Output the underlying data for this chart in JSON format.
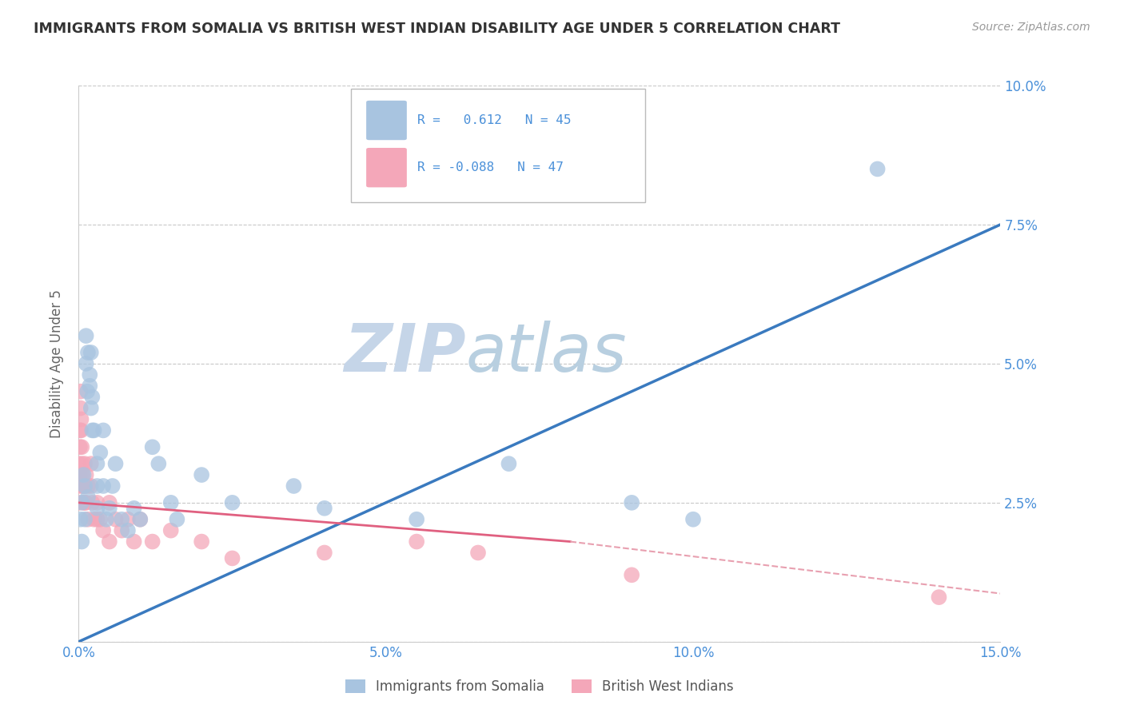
{
  "title": "IMMIGRANTS FROM SOMALIA VS BRITISH WEST INDIAN DISABILITY AGE UNDER 5 CORRELATION CHART",
  "source": "Source: ZipAtlas.com",
  "ylabel": "Disability Age Under 5",
  "xlim": [
    0,
    0.15
  ],
  "ylim": [
    0,
    0.1
  ],
  "xticks": [
    0.0,
    0.05,
    0.1,
    0.15
  ],
  "xticklabels": [
    "0.0%",
    "5.0%",
    "10.0%",
    "15.0%"
  ],
  "yticks": [
    0.0,
    0.025,
    0.05,
    0.075,
    0.1
  ],
  "yticklabels": [
    "",
    "2.5%",
    "5.0%",
    "7.5%",
    "10.0%"
  ],
  "somalia_color": "#a8c4e0",
  "bwi_color": "#f4a7b9",
  "somalia_line_color": "#3a7abf",
  "bwi_line_color": "#e06080",
  "bwi_line_color_dash": "#e8a0b0",
  "watermark_color": "#ccd9ea",
  "background_color": "#ffffff",
  "grid_color": "#c8c8c8",
  "title_color": "#333333",
  "axis_label_color": "#666666",
  "tick_color": "#4a90d9",
  "legend_text_color": "#4a90d9",
  "somalia_scatter": [
    [
      0.0003,
      0.022
    ],
    [
      0.0005,
      0.025
    ],
    [
      0.0005,
      0.018
    ],
    [
      0.0008,
      0.03
    ],
    [
      0.001,
      0.022
    ],
    [
      0.001,
      0.028
    ],
    [
      0.0012,
      0.055
    ],
    [
      0.0012,
      0.05
    ],
    [
      0.0014,
      0.045
    ],
    [
      0.0015,
      0.052
    ],
    [
      0.0015,
      0.026
    ],
    [
      0.0018,
      0.046
    ],
    [
      0.0018,
      0.048
    ],
    [
      0.002,
      0.052
    ],
    [
      0.002,
      0.042
    ],
    [
      0.0022,
      0.038
    ],
    [
      0.0022,
      0.044
    ],
    [
      0.0025,
      0.038
    ],
    [
      0.003,
      0.024
    ],
    [
      0.003,
      0.032
    ],
    [
      0.003,
      0.028
    ],
    [
      0.0035,
      0.034
    ],
    [
      0.004,
      0.038
    ],
    [
      0.004,
      0.028
    ],
    [
      0.0045,
      0.022
    ],
    [
      0.005,
      0.024
    ],
    [
      0.0055,
      0.028
    ],
    [
      0.006,
      0.032
    ],
    [
      0.007,
      0.022
    ],
    [
      0.008,
      0.02
    ],
    [
      0.009,
      0.024
    ],
    [
      0.01,
      0.022
    ],
    [
      0.012,
      0.035
    ],
    [
      0.013,
      0.032
    ],
    [
      0.015,
      0.025
    ],
    [
      0.016,
      0.022
    ],
    [
      0.02,
      0.03
    ],
    [
      0.025,
      0.025
    ],
    [
      0.035,
      0.028
    ],
    [
      0.04,
      0.024
    ],
    [
      0.055,
      0.022
    ],
    [
      0.07,
      0.032
    ],
    [
      0.09,
      0.025
    ],
    [
      0.1,
      0.022
    ],
    [
      0.13,
      0.085
    ]
  ],
  "bwi_scatter": [
    [
      0.0,
      0.025
    ],
    [
      0.0,
      0.032
    ],
    [
      0.0,
      0.028
    ],
    [
      0.0002,
      0.038
    ],
    [
      0.0002,
      0.035
    ],
    [
      0.0002,
      0.03
    ],
    [
      0.0003,
      0.045
    ],
    [
      0.0003,
      0.042
    ],
    [
      0.0004,
      0.04
    ],
    [
      0.0004,
      0.038
    ],
    [
      0.0005,
      0.035
    ],
    [
      0.0005,
      0.032
    ],
    [
      0.0006,
      0.03
    ],
    [
      0.0006,
      0.028
    ],
    [
      0.0008,
      0.028
    ],
    [
      0.0008,
      0.025
    ],
    [
      0.001,
      0.032
    ],
    [
      0.001,
      0.028
    ],
    [
      0.001,
      0.025
    ],
    [
      0.0012,
      0.03
    ],
    [
      0.0012,
      0.025
    ],
    [
      0.0015,
      0.028
    ],
    [
      0.0015,
      0.022
    ],
    [
      0.002,
      0.032
    ],
    [
      0.002,
      0.028
    ],
    [
      0.0022,
      0.025
    ],
    [
      0.0025,
      0.022
    ],
    [
      0.003,
      0.025
    ],
    [
      0.003,
      0.022
    ],
    [
      0.0035,
      0.022
    ],
    [
      0.004,
      0.02
    ],
    [
      0.005,
      0.025
    ],
    [
      0.005,
      0.018
    ],
    [
      0.006,
      0.022
    ],
    [
      0.007,
      0.02
    ],
    [
      0.008,
      0.022
    ],
    [
      0.009,
      0.018
    ],
    [
      0.01,
      0.022
    ],
    [
      0.012,
      0.018
    ],
    [
      0.015,
      0.02
    ],
    [
      0.02,
      0.018
    ],
    [
      0.025,
      0.015
    ],
    [
      0.04,
      0.016
    ],
    [
      0.055,
      0.018
    ],
    [
      0.065,
      0.016
    ],
    [
      0.09,
      0.012
    ],
    [
      0.14,
      0.008
    ]
  ]
}
